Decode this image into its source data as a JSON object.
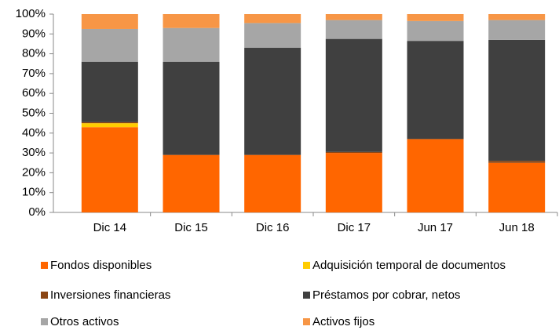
{
  "chart_data": {
    "type": "stacked_bar",
    "categories": [
      "Dic 14",
      "Dic 15",
      "Dic 16",
      "Dic 17",
      "Jun 17",
      "Jun 18"
    ],
    "series": [
      {
        "name": "Fondos disponibles",
        "color": "#ff6600",
        "values": [
          43,
          29,
          29,
          30,
          37,
          25
        ]
      },
      {
        "name": "Adquisición temporal de documentos",
        "color": "#ffcc00",
        "values": [
          2,
          0,
          0,
          0,
          0,
          0
        ]
      },
      {
        "name": "Inversiones financieras",
        "color": "#8b4513",
        "values": [
          0.5,
          0,
          0,
          0.5,
          0,
          1
        ]
      },
      {
        "name": "Préstamos por cobrar, netos",
        "color": "#404040",
        "values": [
          30.5,
          47,
          54,
          57,
          49.5,
          61
        ]
      },
      {
        "name": "Otros activos",
        "color": "#a6a6a6",
        "values": [
          16.5,
          17,
          12.5,
          9.5,
          10,
          10
        ]
      },
      {
        "name": "Activos fijos",
        "color": "#f79646",
        "values": [
          7.5,
          7,
          4.5,
          3,
          3.5,
          3
        ]
      }
    ],
    "ylim": [
      0,
      100
    ],
    "yticks": [
      {
        "value": 0,
        "label": "0%"
      },
      {
        "value": 10,
        "label": "10%"
      },
      {
        "value": 20,
        "label": "20%"
      },
      {
        "value": 30,
        "label": "30%"
      },
      {
        "value": 40,
        "label": "40%"
      },
      {
        "value": 50,
        "label": "50%"
      },
      {
        "value": 60,
        "label": "60%"
      },
      {
        "value": 70,
        "label": "70%"
      },
      {
        "value": 80,
        "label": "80%"
      },
      {
        "value": 90,
        "label": "90%"
      },
      {
        "value": 100,
        "label": "100%"
      }
    ]
  }
}
